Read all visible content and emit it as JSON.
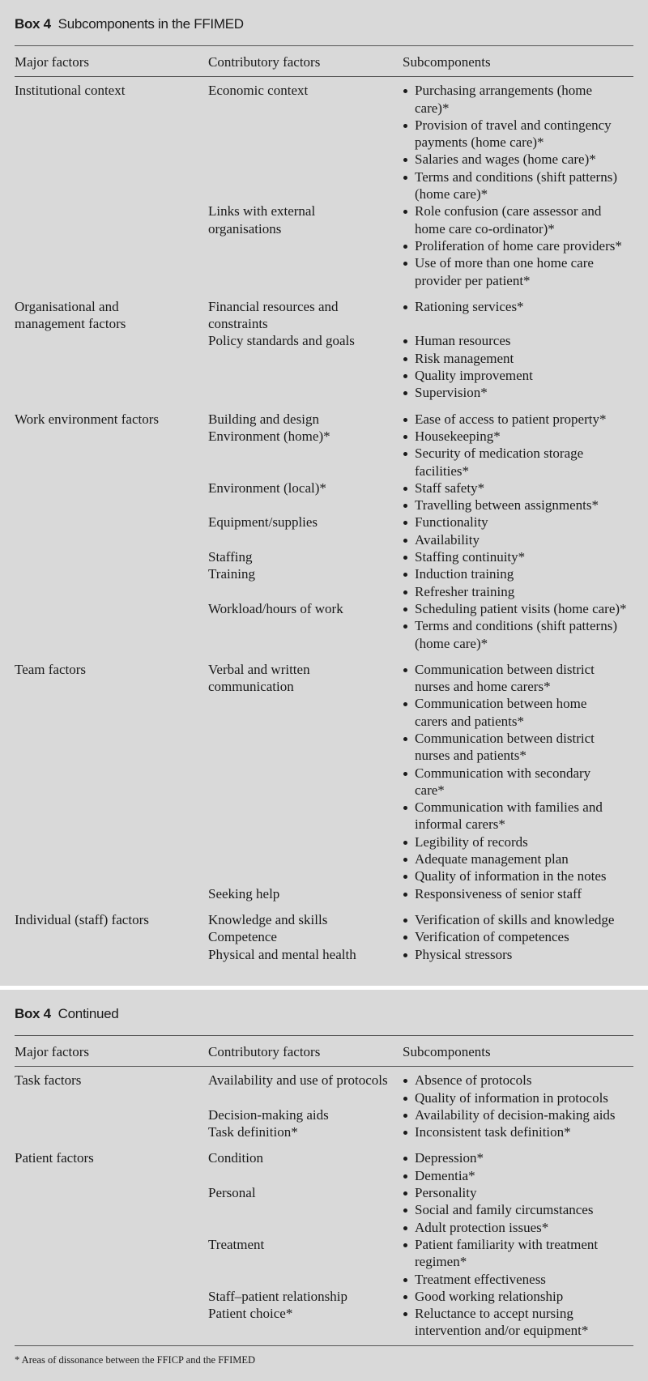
{
  "box1": {
    "title_bold": "Box 4",
    "title_rest": "Subcomponents in the FFIMED",
    "headers": [
      "Major factors",
      "Contributory factors",
      "Subcomponents"
    ],
    "groups": [
      {
        "major": "Institutional context",
        "contribs": [
          {
            "name": "Economic context",
            "subs": [
              "Purchasing arrangements (home\ncare)*",
              "Provision of travel and contingency\npayments (home care)*",
              "Salaries and wages (home care)*",
              "Terms and conditions (shift patterns)\n(home care)*"
            ]
          },
          {
            "name": "Links with external\norganisations",
            "subs": [
              "Role confusion (care assessor and\nhome care co-ordinator)*",
              "Proliferation of home care providers*",
              "Use of more than one home care\nprovider per patient*"
            ]
          }
        ]
      },
      {
        "major": "Organisational and\nmanagement factors",
        "contribs": [
          {
            "name": "Financial resources and\nconstraints",
            "subs": [
              "Rationing services*"
            ]
          },
          {
            "name": "Policy standards and goals",
            "subs": [
              "Human resources",
              "Risk management",
              "Quality improvement",
              "Supervision*"
            ]
          }
        ]
      },
      {
        "major": "Work environment factors",
        "contribs": [
          {
            "name": "Building and design",
            "subs": [
              "Ease of access to patient property*"
            ]
          },
          {
            "name": "Environment (home)*",
            "subs": [
              "Housekeeping*",
              "Security of medication storage\nfacilities*"
            ]
          },
          {
            "name": "Environment (local)*",
            "subs": [
              "Staff safety*",
              "Travelling between assignments*"
            ]
          },
          {
            "name": "Equipment/supplies",
            "subs": [
              "Functionality",
              "Availability"
            ]
          },
          {
            "name": "Staffing",
            "subs": [
              "Staffing continuity*"
            ]
          },
          {
            "name": "Training",
            "subs": [
              "Induction training",
              "Refresher training"
            ]
          },
          {
            "name": "Workload/hours of work",
            "subs": [
              "Scheduling patient visits (home care)*",
              "Terms and conditions (shift patterns)\n(home care)*"
            ]
          }
        ]
      },
      {
        "major": "Team factors",
        "contribs": [
          {
            "name": "Verbal and written\ncommunication",
            "subs": [
              "Communication between district\nnurses and home carers*",
              "Communication between home\ncarers and patients*",
              "Communication between district\nnurses and patients*",
              "Communication with secondary\ncare*",
              "Communication with families and\ninformal carers*",
              "Legibility of records",
              "Adequate management plan",
              "Quality of information in the notes"
            ]
          },
          {
            "name": "Seeking help",
            "subs": [
              "Responsiveness of senior staff"
            ]
          }
        ]
      },
      {
        "major": "Individual (staff) factors",
        "contribs": [
          {
            "name": "Knowledge and skills",
            "subs": [
              "Verification of skills and knowledge"
            ]
          },
          {
            "name": "Competence",
            "subs": [
              "Verification of competences"
            ]
          },
          {
            "name": "Physical and mental health",
            "subs": [
              "Physical stressors"
            ]
          }
        ]
      }
    ]
  },
  "box2": {
    "title_bold": "Box 4",
    "title_rest": "Continued",
    "headers": [
      "Major factors",
      "Contributory factors",
      "Subcomponents"
    ],
    "groups": [
      {
        "major": "Task factors",
        "contribs": [
          {
            "name": "Availability and use of protocols",
            "subs": [
              "Absence of protocols",
              "Quality of information in protocols"
            ]
          },
          {
            "name": "Decision-making aids",
            "subs": [
              "Availability of decision-making aids"
            ]
          },
          {
            "name": "Task definition*",
            "subs": [
              "Inconsistent task definition*"
            ]
          }
        ]
      },
      {
        "major": "Patient factors",
        "contribs": [
          {
            "name": "Condition",
            "subs": [
              "Depression*",
              "Dementia*"
            ]
          },
          {
            "name": "Personal",
            "subs": [
              "Personality",
              "Social and family circumstances",
              "Adult protection issues*"
            ]
          },
          {
            "name": "Treatment",
            "subs": [
              "Patient familiarity with treatment\nregimen*",
              "Treatment effectiveness"
            ]
          },
          {
            "name": "Staff–patient relationship",
            "subs": [
              "Good working relationship"
            ]
          },
          {
            "name": "Patient choice*",
            "subs": [
              "Reluctance to accept nursing\nintervention and/or equipment*"
            ]
          }
        ]
      }
    ],
    "footnote": "* Areas of dissonance between the FFICP and the FFIMED"
  }
}
